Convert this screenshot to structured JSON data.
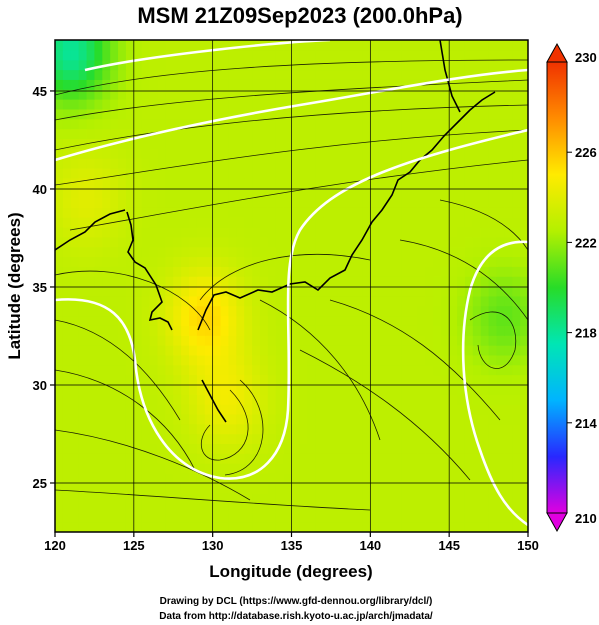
{
  "chart_data": {
    "type": "heatmap",
    "title": "MSM 21Z09Sep2023 (200.0hPa)",
    "xlabel": "Longitude (degrees)",
    "ylabel": "Latitude  (degrees)",
    "xlim": [
      120,
      150
    ],
    "ylim": [
      22.5,
      47.6
    ],
    "x_ticks": [
      120,
      125,
      130,
      135,
      140,
      145,
      150
    ],
    "y_ticks": [
      25,
      30,
      35,
      40,
      45
    ],
    "colorbar": {
      "min": 210,
      "max": 230,
      "ticks": [
        210,
        214,
        218,
        222,
        226,
        230
      ],
      "colors": [
        "#e000e0",
        "#2828ff",
        "#00b4ff",
        "#00e6b4",
        "#28dc28",
        "#b4f000",
        "#ffeb00",
        "#ff8c00",
        "#f03200"
      ]
    },
    "contour_color": "#ffffff",
    "streamline_color": "#000000",
    "field_centers": [
      {
        "lon": 130.9,
        "lat": 29.3,
        "value": 224.5
      },
      {
        "lon": 129.5,
        "lat": 33.5,
        "value": 225.5
      },
      {
        "lon": 121.0,
        "lat": 47.0,
        "value": 218.0
      },
      {
        "lon": 122.0,
        "lat": 39.5,
        "value": 224.0
      },
      {
        "lon": 148.5,
        "lat": 33.5,
        "value": 221.0
      }
    ],
    "background_value": 222.8
  },
  "credits": {
    "line1": "Drawing by DCL (https://www.gfd-dennou.org/library/dcl/)",
    "line2": "Data from http://database.rish.kyoto-u.ac.jp/arch/jmadata/"
  }
}
